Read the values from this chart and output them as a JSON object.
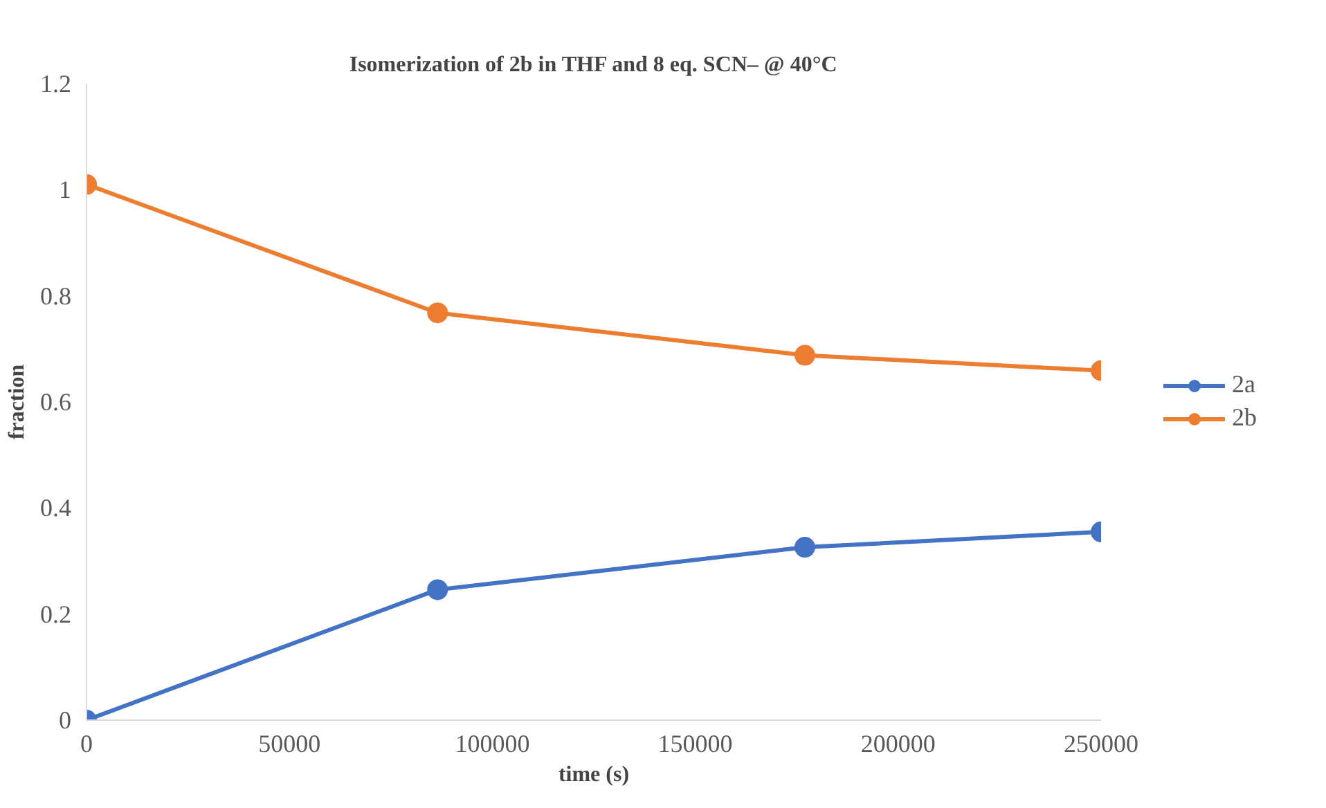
{
  "chart_data": {
    "type": "line",
    "title": "Isomerization of 2b in THF and 8 eq. SCN– @ 40°C",
    "xlabel": "time (s)",
    "ylabel": "fraction",
    "x": [
      0,
      86500,
      177000,
      250000
    ],
    "series": [
      {
        "name": "2a",
        "color": "#4472c4",
        "values": [
          0.0,
          0.246,
          0.326,
          0.355
        ]
      },
      {
        "name": "2b",
        "color": "#ed7d31",
        "values": [
          1.01,
          0.768,
          0.688,
          0.659
        ]
      }
    ],
    "xlim": [
      0,
      250000
    ],
    "xticks": [
      0,
      50000,
      100000,
      150000,
      200000,
      250000
    ],
    "ylim": [
      0,
      1.2
    ],
    "yticks": [
      0,
      0.2,
      0.4,
      0.6,
      0.8,
      1,
      1.2
    ],
    "grid": false,
    "legend": "right",
    "marker": "circle",
    "line_style": "solid"
  }
}
